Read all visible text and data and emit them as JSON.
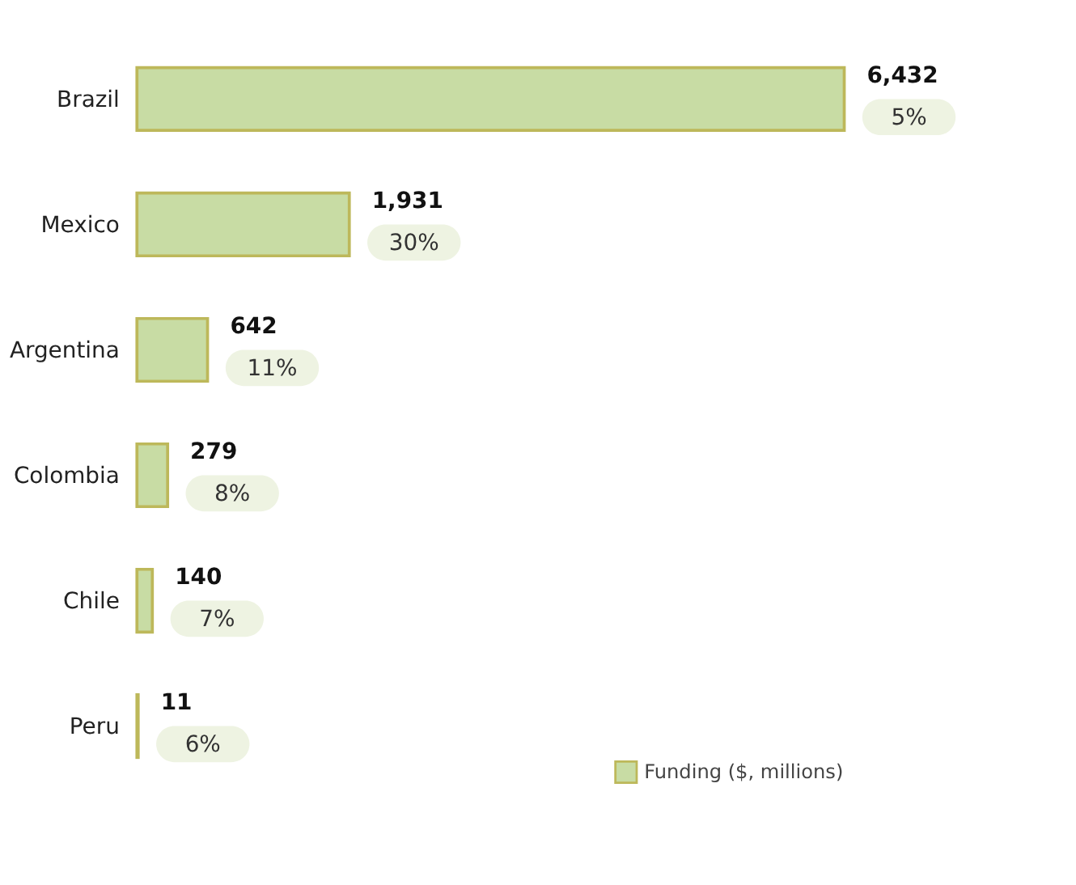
{
  "chart_data": {
    "type": "bar",
    "orientation": "horizontal",
    "categories": [
      "Brazil",
      "Mexico",
      "Argentina",
      "Colombia",
      "Chile",
      "Peru"
    ],
    "series": [
      {
        "name": "Funding ($, millions)",
        "color": "#c8dca4",
        "values": [
          6432,
          1931,
          642,
          279,
          140,
          11
        ],
        "value_labels": [
          "6,432",
          "1,931",
          "642",
          "279",
          "140",
          "11"
        ]
      }
    ],
    "annotations": [
      {
        "text": "5%",
        "x": 6432,
        "y": "Brazil"
      },
      {
        "text": "30%",
        "x": 1931,
        "y": "Mexico"
      },
      {
        "text": "11%",
        "x": 642,
        "y": "Argentina"
      },
      {
        "text": "8%",
        "x": 279,
        "y": "Colombia"
      },
      {
        "text": "7%",
        "x": 140,
        "y": "Chile"
      },
      {
        "text": "6%",
        "x": 11,
        "y": "Peru"
      }
    ],
    "tick_labels": "y",
    "grid": false,
    "legend": "bottom right"
  }
}
